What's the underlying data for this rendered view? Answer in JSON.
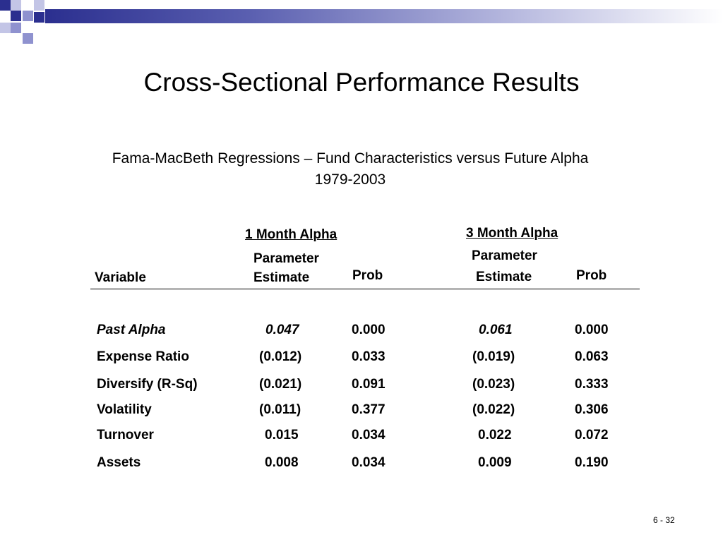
{
  "slide": {
    "title": "Cross-Sectional Performance Results",
    "subtitle_line1": "Fama-MacBeth Regressions – Fund Characteristics versus Future Alpha",
    "subtitle_line2": "1979-2003",
    "page_number": "6 - 32"
  },
  "table": {
    "group1": "1 Month Alpha",
    "group2": "3 Month Alpha",
    "col_variable": "Variable",
    "col_param_line1": "Parameter",
    "col_param_line2": "Estimate",
    "col_prob": "Prob",
    "rows": [
      {
        "variable": "Past Alpha",
        "est1": "0.047",
        "prob1": "0.000",
        "est3": "0.061",
        "prob3": "0.000"
      },
      {
        "variable": "Expense Ratio",
        "est1": "(0.012)",
        "prob1": "0.033",
        "est3": "(0.019)",
        "prob3": "0.063"
      },
      {
        "variable": "Diversify (R-Sq)",
        "est1": "(0.021)",
        "prob1": "0.091",
        "est3": "(0.023)",
        "prob3": "0.333"
      },
      {
        "variable": "Volatility",
        "est1": "(0.011)",
        "prob1": "0.377",
        "est3": "(0.022)",
        "prob3": "0.306"
      },
      {
        "variable": "Turnover",
        "est1": "0.015",
        "prob1": "0.034",
        "est3": "0.022",
        "prob3": "0.072"
      },
      {
        "variable": "Assets",
        "est1": "0.008",
        "prob1": "0.034",
        "est3": "0.009",
        "prob3": "0.190"
      }
    ]
  }
}
